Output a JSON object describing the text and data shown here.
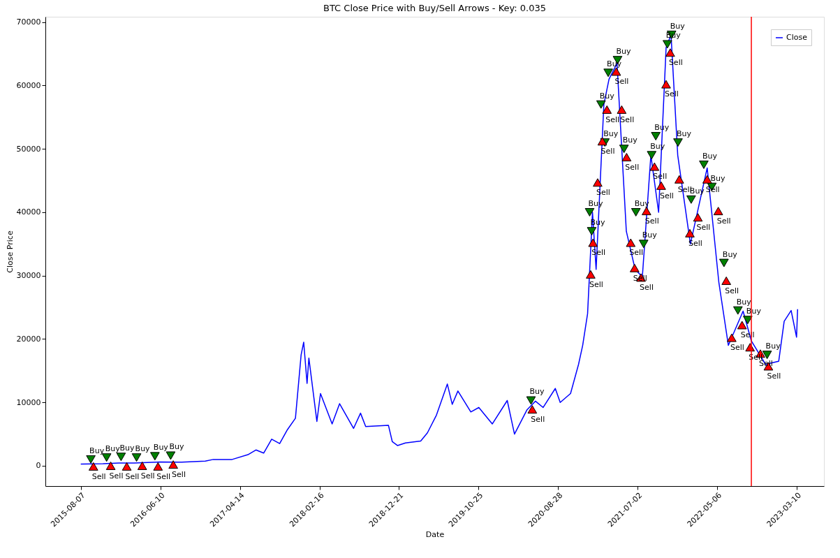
{
  "chart_data": {
    "type": "line",
    "title": "BTC Close Price with Buy/Sell Arrows - Key: 0.035",
    "xlabel": "Date",
    "ylabel": "Close Price",
    "xlim": [
      "2015-03-23",
      "2023-06-23"
    ],
    "xticks": [
      "2015-08-07",
      "2016-06-10",
      "2017-04-14",
      "2018-02-16",
      "2018-12-21",
      "2019-10-25",
      "2020-08-28",
      "2021-07-02",
      "2022-05-06",
      "2023-03-10"
    ],
    "ylim": [
      -3200,
      70850
    ],
    "yticks": [
      0,
      10000,
      20000,
      30000,
      40000,
      50000,
      60000,
      70000
    ],
    "grid": false,
    "legend": "top right",
    "ref_lines": [
      {
        "axis": "x",
        "value": "2022-09-15",
        "color": "#ff0000"
      }
    ],
    "series": [
      {
        "name": "Close",
        "color": "#0000ff",
        "marker": "none",
        "x": [
          "2015-08-07",
          "2015-11-01",
          "2016-01-01",
          "2016-03-01",
          "2016-06-10",
          "2016-09-01",
          "2016-12-01",
          "2017-01-01",
          "2017-03-15",
          "2017-05-15",
          "2017-06-15",
          "2017-07-15",
          "2017-08-15",
          "2017-09-15",
          "2017-10-15",
          "2017-11-15",
          "2017-12-07",
          "2017-12-17",
          "2017-12-30",
          "2018-01-06",
          "2018-02-06",
          "2018-02-20",
          "2018-04-06",
          "2018-05-05",
          "2018-06-28",
          "2018-07-25",
          "2018-08-14",
          "2018-11-10",
          "2018-11-25",
          "2018-12-15",
          "2019-01-15",
          "2019-03-15",
          "2019-04-10",
          "2019-05-15",
          "2019-06-26",
          "2019-07-15",
          "2019-08-06",
          "2019-09-25",
          "2019-10-26",
          "2019-12-17",
          "2020-02-13",
          "2020-03-12",
          "2020-04-29",
          "2020-06-01",
          "2020-07-01",
          "2020-08-17",
          "2020-09-05",
          "2020-10-15",
          "2020-11-15",
          "2020-12-01",
          "2020-12-20",
          "2021-01-08",
          "2021-01-22",
          "2021-02-21",
          "2021-03-13",
          "2021-04-13",
          "2021-05-19",
          "2021-06-22",
          "2021-07-20",
          "2021-08-22",
          "2021-09-21",
          "2021-10-20",
          "2021-11-08",
          "2021-12-04",
          "2022-01-22",
          "2022-03-28",
          "2022-05-12",
          "2022-06-18",
          "2022-08-14",
          "2022-09-15",
          "2022-11-09",
          "2022-12-30",
          "2023-01-20",
          "2023-02-16",
          "2023-03-09",
          "2023-03-13"
        ],
        "values": [
          280,
          320,
          430,
          430,
          600,
          580,
          750,
          1000,
          1000,
          1750,
          2500,
          2000,
          4200,
          3500,
          5700,
          7500,
          17500,
          19500,
          13000,
          17000,
          7000,
          11400,
          6600,
          9800,
          5900,
          8300,
          6200,
          6400,
          3800,
          3200,
          3600,
          3900,
          5200,
          8000,
          12900,
          9700,
          11800,
          8500,
          9200,
          6600,
          10300,
          5000,
          8800,
          10200,
          9200,
          12200,
          10000,
          11400,
          16000,
          19000,
          24000,
          40000,
          31000,
          57000,
          61000,
          63500,
          37000,
          31000,
          29800,
          49000,
          40000,
          66000,
          68000,
          49000,
          35000,
          47000,
          29000,
          19000,
          24400,
          19700,
          16000,
          16500,
          22800,
          24500,
          20300,
          24700
        ]
      },
      {
        "type": "scatter",
        "color": "#008000",
        "marker": "triangle-down",
        "x": [
          "2015-09-15",
          "2015-11-15",
          "2016-01-10",
          "2016-03-10",
          "2016-05-20",
          "2016-07-20",
          "2020-05-15",
          "2020-12-28",
          "2021-01-05",
          "2021-02-10",
          "2021-02-25",
          "2021-03-10",
          "2021-04-15",
          "2021-05-10",
          "2021-06-25",
          "2021-07-25",
          "2021-08-25",
          "2021-09-10",
          "2021-10-25",
          "2021-11-10",
          "2021-12-05",
          "2022-01-25",
          "2022-03-15",
          "2022-04-15",
          "2022-06-01",
          "2022-07-25",
          "2022-09-01",
          "2022-11-15"
        ],
        "values": [
          1000,
          1300,
          1400,
          1300,
          1500,
          1600,
          10300,
          40000,
          37000,
          57000,
          51000,
          62000,
          64000,
          50000,
          40000,
          35000,
          49000,
          52000,
          66500,
          68000,
          51000,
          42000,
          47500,
          44000,
          32000,
          24500,
          23000,
          17500
        ],
        "value_labels": [
          "Buy",
          "Buy",
          "Buy",
          "Buy",
          "Buy",
          "Buy",
          "Buy",
          "Buy",
          "Buy",
          "Buy",
          "Buy",
          "Buy",
          "Buy",
          "Buy",
          "Buy",
          "Buy",
          "Buy",
          "Buy",
          "Buy",
          "Buy",
          "Buy",
          "Buy",
          "Buy",
          "Buy",
          "Buy",
          "Buy",
          "Buy",
          "Buy"
        ]
      },
      {
        "type": "scatter",
        "color": "#ff0000",
        "marker": "triangle",
        "x": [
          "2015-09-25",
          "2015-12-01",
          "2016-02-01",
          "2016-04-01",
          "2016-06-01",
          "2016-07-30",
          "2020-05-20",
          "2021-01-01",
          "2021-01-10",
          "2021-01-28",
          "2021-02-15",
          "2021-03-05",
          "2021-04-10",
          "2021-05-01",
          "2021-05-20",
          "2021-06-05",
          "2021-06-20",
          "2021-07-15",
          "2021-08-05",
          "2021-09-05",
          "2021-10-01",
          "2021-10-20",
          "2021-11-05",
          "2021-12-10",
          "2022-01-20",
          "2022-02-20",
          "2022-03-28",
          "2022-05-10",
          "2022-06-10",
          "2022-07-01",
          "2022-08-10",
          "2022-09-10",
          "2022-10-20",
          "2022-11-20"
        ],
        "values": [
          -300,
          -200,
          -300,
          -200,
          -300,
          0,
          8700,
          30000,
          35000,
          44500,
          51000,
          56000,
          62000,
          56000,
          48500,
          35000,
          31000,
          29500,
          40000,
          47000,
          44000,
          60000,
          65000,
          45000,
          36500,
          39000,
          45000,
          40000,
          29000,
          20000,
          22000,
          18500,
          17500,
          15500
        ],
        "value_labels": [
          "Sell",
          "Sell",
          "Sell",
          "Sell",
          "Sell",
          "Sell",
          "Sell",
          "Sell",
          "Sell",
          "Sell",
          "Sell",
          "Sell",
          "Sell",
          "Sell",
          "Sell",
          "Sell",
          "Sell",
          "Sell",
          "Sell",
          "Sell",
          "Sell",
          "Sell",
          "Sell",
          "Sell",
          "Sell",
          "Sell",
          "Sell",
          "Sell",
          "Sell",
          "Sell",
          "Sell",
          "Sell",
          "Sell",
          "Sell"
        ]
      }
    ]
  }
}
